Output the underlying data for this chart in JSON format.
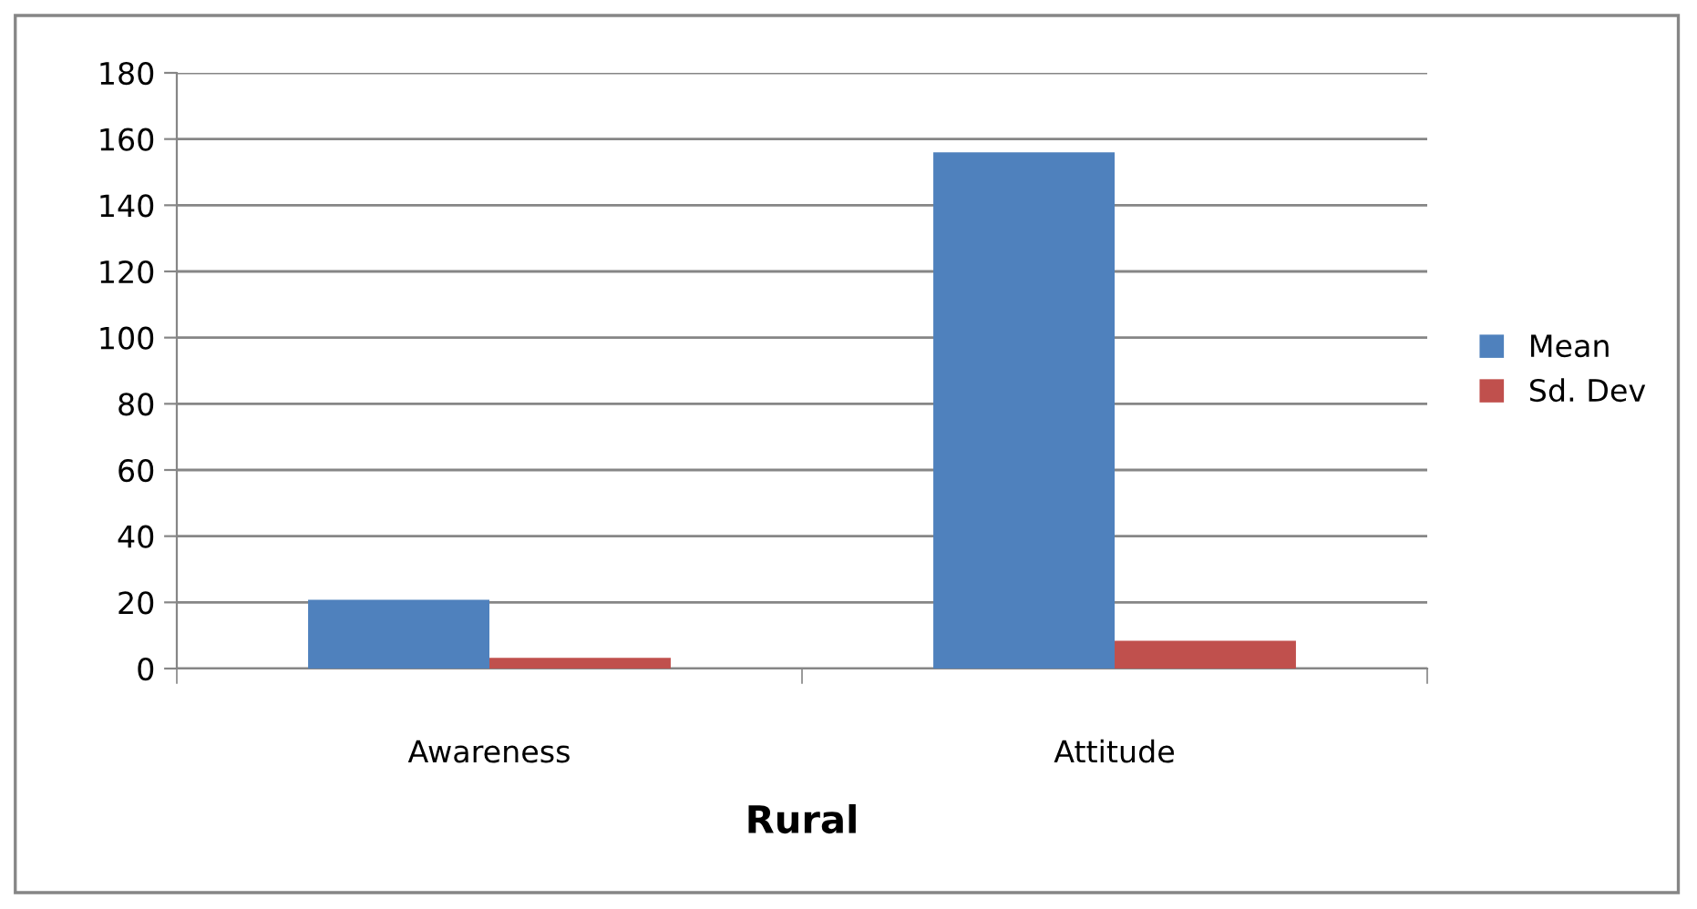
{
  "chart_data": {
    "type": "bar",
    "xlabel": "Rural",
    "categories": [
      "Awareness",
      "Attitude"
    ],
    "series": [
      {
        "name": "Mean",
        "color": "#4f81bd",
        "values": [
          20.8,
          156
        ]
      },
      {
        "name": "Sd. Dev",
        "color": "#c0504d",
        "values": [
          3.2,
          8.4
        ]
      }
    ],
    "ylim": [
      0,
      180
    ],
    "yticks": [
      0,
      20,
      40,
      60,
      80,
      100,
      120,
      140,
      160,
      180
    ],
    "grid": "y",
    "legend": "right"
  }
}
